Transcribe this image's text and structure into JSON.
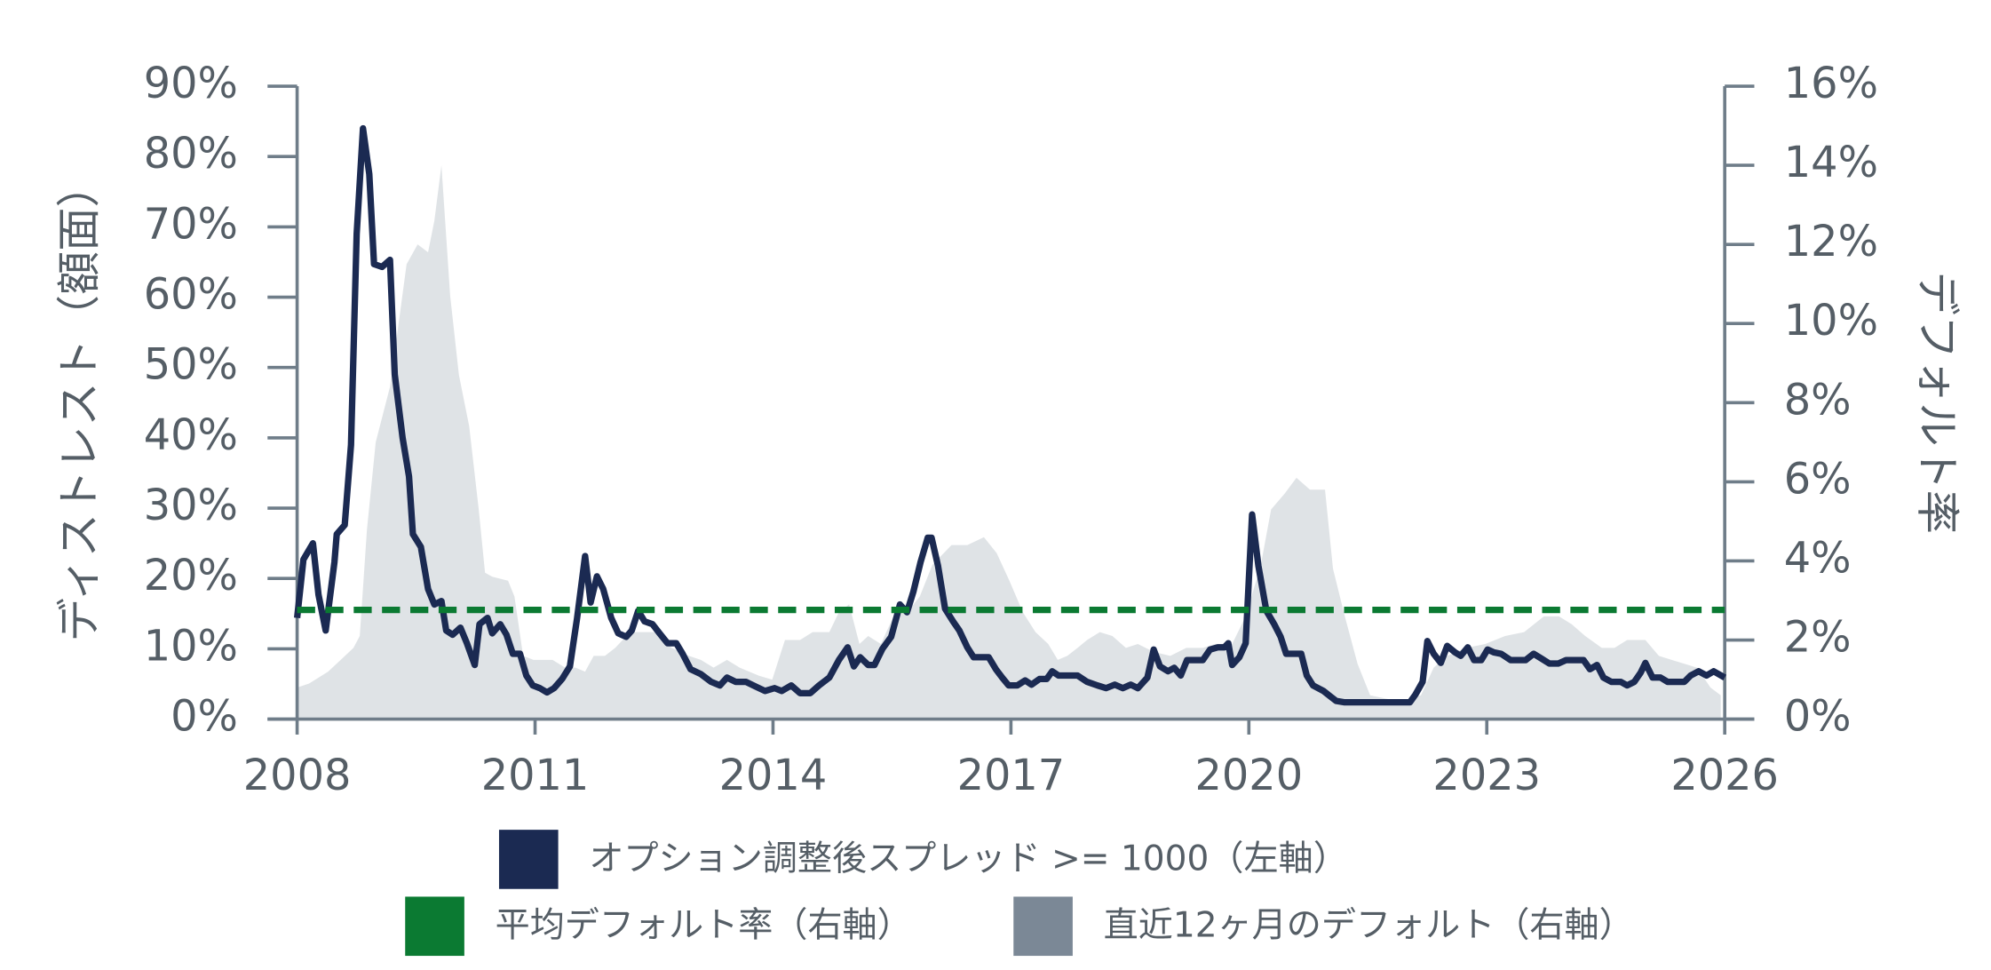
{
  "chart_data": {
    "type": "line",
    "ylabel": "ディストレスト（額面）",
    "y2label": "デフォルト率",
    "xlim": [
      2008,
      2026
    ],
    "xticks": [
      2008,
      2011,
      2014,
      2017,
      2020,
      2023,
      2026
    ],
    "ylim": [
      0,
      90
    ],
    "yticks": [
      {
        "value": 0,
        "label": "0%"
      },
      {
        "value": 10,
        "label": "10%"
      },
      {
        "value": 20,
        "label": "20%"
      },
      {
        "value": 30,
        "label": "30%"
      },
      {
        "value": 40,
        "label": "40%"
      },
      {
        "value": 50,
        "label": "50%"
      },
      {
        "value": 60,
        "label": "60%"
      },
      {
        "value": 70,
        "label": "70%"
      },
      {
        "value": 80,
        "label": "80%"
      },
      {
        "value": 90,
        "label": "90%"
      }
    ],
    "y2lim": [
      0,
      16
    ],
    "y2ticks": [
      {
        "value": 0,
        "label": "0%"
      },
      {
        "value": 2,
        "label": "2%"
      },
      {
        "value": 4,
        "label": "4%"
      },
      {
        "value": 6,
        "label": "6%"
      },
      {
        "value": 8,
        "label": "8%"
      },
      {
        "value": 10,
        "label": "10%"
      },
      {
        "value": 12,
        "label": "12%"
      },
      {
        "value": 14,
        "label": "14%"
      },
      {
        "value": 16,
        "label": "16%"
      }
    ],
    "series": [
      {
        "name": "オプション調整後スプレッド >= 1000（左軸）",
        "type": "line",
        "color": "#1b2a52",
        "x": [
          2008.0,
          2008.08,
          2008.2,
          2008.27,
          2008.36,
          2008.47,
          2008.5,
          2008.6,
          2008.68,
          2008.75,
          2008.83,
          2008.91,
          2008.97,
          2009.07,
          2009.17,
          2009.23,
          2009.33,
          2009.41,
          2009.46,
          2009.56,
          2009.65,
          2009.73,
          2009.82,
          2009.88,
          2009.96,
          2010.06,
          2010.14,
          2010.24,
          2010.3,
          2010.4,
          2010.46,
          2010.56,
          2010.64,
          2010.72,
          2010.81,
          2010.89,
          2010.97,
          2011.06,
          2011.15,
          2011.24,
          2011.34,
          2011.44,
          2011.53,
          2011.63,
          2011.7,
          2011.78,
          2011.86,
          2011.96,
          2012.05,
          2012.15,
          2012.22,
          2012.3,
          2012.38,
          2012.48,
          2012.57,
          2012.67,
          2012.78,
          2012.86,
          2012.96,
          2013.09,
          2013.22,
          2013.33,
          2013.42,
          2013.53,
          2013.66,
          2013.79,
          2013.9,
          2014.02,
          2014.11,
          2014.23,
          2014.34,
          2014.47,
          2014.58,
          2014.71,
          2014.83,
          2014.94,
          2015.02,
          2015.1,
          2015.2,
          2015.28,
          2015.38,
          2015.49,
          2015.6,
          2015.69,
          2015.77,
          2015.86,
          2015.95,
          2016.0,
          2016.08,
          2016.17,
          2016.27,
          2016.35,
          2016.45,
          2016.53,
          2016.63,
          2016.72,
          2016.81,
          2016.89,
          2016.97,
          2017.08,
          2017.18,
          2017.26,
          2017.36,
          2017.45,
          2017.52,
          2017.6,
          2017.71,
          2017.84,
          2017.96,
          2018.09,
          2018.2,
          2018.31,
          2018.41,
          2018.51,
          2018.6,
          2018.72,
          2018.8,
          2018.88,
          2018.98,
          2019.06,
          2019.14,
          2019.22,
          2019.32,
          2019.42,
          2019.51,
          2019.61,
          2019.69,
          2019.74,
          2019.79,
          2019.88,
          2019.96,
          2020.04,
          2020.12,
          2020.22,
          2020.32,
          2020.4,
          2020.47,
          2020.57,
          2020.66,
          2020.73,
          2020.81,
          2020.94,
          2021.02,
          2021.1,
          2021.2,
          2021.44,
          2021.77,
          2022.03,
          2022.1,
          2022.19,
          2022.25,
          2022.33,
          2022.42,
          2022.5,
          2022.6,
          2022.67,
          2022.76,
          2022.84,
          2022.93,
          2023.01,
          2023.09,
          2023.18,
          2023.3,
          2023.4,
          2023.49,
          2023.59,
          2023.69,
          2023.79,
          2023.9,
          2024.0,
          2024.1,
          2024.22,
          2024.3,
          2024.39,
          2024.47,
          2024.57,
          2024.69,
          2024.77,
          2024.86,
          2024.94,
          2025.0,
          2025.09,
          2025.19,
          2025.28,
          2025.38,
          2025.49,
          2025.57,
          2025.67,
          2025.77,
          2025.86,
          2026.0
        ],
        "values": [
          14.4,
          22.7,
          25,
          17.7,
          12.6,
          22.3,
          26.3,
          27.6,
          39,
          69,
          84,
          77.5,
          64.7,
          64.3,
          65.3,
          49,
          40,
          34.5,
          26.3,
          24.5,
          18.5,
          16.3,
          16.8,
          12.6,
          12,
          13,
          10.8,
          7.7,
          13.5,
          14.4,
          12.2,
          13.5,
          12,
          9.3,
          9.3,
          6.2,
          4.8,
          4.4,
          3.8,
          4.4,
          5.7,
          7.5,
          14.4,
          23.2,
          16.6,
          20.3,
          18.5,
          14.4,
          12.2,
          11.7,
          12.6,
          15.4,
          13.9,
          13.5,
          12.2,
          10.8,
          10.8,
          9.3,
          7.1,
          6.4,
          5.3,
          4.8,
          5.9,
          5.3,
          5.3,
          4.6,
          4.0,
          4.4,
          4.0,
          4.8,
          3.7,
          3.7,
          4.8,
          5.9,
          8.4,
          10.2,
          7.5,
          8.8,
          7.7,
          7.7,
          10,
          11.7,
          16.3,
          15.2,
          18.1,
          22.3,
          25.8,
          25.8,
          21.8,
          15.7,
          13.9,
          12.6,
          10.2,
          8.8,
          8.8,
          8.8,
          7.1,
          5.9,
          4.8,
          4.8,
          5.5,
          4.9,
          5.7,
          5.7,
          6.8,
          6.2,
          6.2,
          6.2,
          5.3,
          4.8,
          4.4,
          4.9,
          4.4,
          4.9,
          4.4,
          5.9,
          9.9,
          7.5,
          6.8,
          7.3,
          6.2,
          8.4,
          8.4,
          8.4,
          9.9,
          10.2,
          10.2,
          10.8,
          7.7,
          8.8,
          10.8,
          29.1,
          21.8,
          15.4,
          13.5,
          11.7,
          9.3,
          9.3,
          9.3,
          6.2,
          4.8,
          4.0,
          3.3,
          2.6,
          2.4,
          2.4,
          2.4,
          2.4,
          3.5,
          5.3,
          11.1,
          9.3,
          8.0,
          10.4,
          9.5,
          9.0,
          10.2,
          8.4,
          8.4,
          9.9,
          9.5,
          9.3,
          8.4,
          8.4,
          8.4,
          9.3,
          8.6,
          7.9,
          7.9,
          8.4,
          8.4,
          8.4,
          7.1,
          7.7,
          5.9,
          5.3,
          5.3,
          4.8,
          5.3,
          6.6,
          8.0,
          5.9,
          5.9,
          5.3,
          5.3,
          5.3,
          6.2,
          6.8,
          6.2,
          6.8,
          5.9
        ]
      },
      {
        "name": "平均デフォルト率（右軸）",
        "type": "hline",
        "axis": "y2",
        "color": "#0b7a32",
        "value": 2.76
      },
      {
        "name": "直近12ヶ月のデフォルト（右軸）",
        "type": "area",
        "axis": "y2",
        "color": "#7b8896",
        "x": [
          2008.0,
          2008.15,
          2008.39,
          2008.55,
          2008.71,
          2008.79,
          2008.88,
          2008.99,
          2009.17,
          2009.28,
          2009.38,
          2009.52,
          2009.65,
          2009.73,
          2009.82,
          2009.93,
          2010.04,
          2010.17,
          2010.29,
          2010.37,
          2010.46,
          2010.66,
          2010.74,
          2010.85,
          2010.98,
          2011.22,
          2011.38,
          2011.51,
          2011.63,
          2011.74,
          2011.88,
          2012.01,
          2012.2,
          2012.36,
          2012.53,
          2012.72,
          2012.94,
          2013.09,
          2013.25,
          2013.42,
          2013.58,
          2013.82,
          2013.99,
          2014.15,
          2014.34,
          2014.5,
          2014.71,
          2014.83,
          2014.96,
          2015.09,
          2015.2,
          2015.36,
          2015.52,
          2015.69,
          2015.85,
          2016.01,
          2016.25,
          2016.45,
          2016.66,
          2016.82,
          2016.98,
          2017.15,
          2017.31,
          2017.47,
          2017.59,
          2017.71,
          2017.84,
          2017.96,
          2018.12,
          2018.28,
          2018.45,
          2018.6,
          2018.8,
          2019.01,
          2019.21,
          2019.42,
          2019.58,
          2019.79,
          2019.96,
          2020.15,
          2020.28,
          2020.45,
          2020.6,
          2020.77,
          2020.96,
          2021.06,
          2021.21,
          2021.37,
          2021.53,
          2021.77,
          2022.02,
          2022.17,
          2022.33,
          2022.5,
          2022.74,
          2022.98,
          2023.23,
          2023.47,
          2023.72,
          2023.91,
          2024.07,
          2024.24,
          2024.45,
          2024.61,
          2024.77,
          2025.0,
          2025.17,
          2025.33,
          2025.49,
          2025.65,
          2025.82,
          2025.95
        ],
        "values": [
          0.8,
          0.9,
          1.2,
          1.5,
          1.8,
          2.1,
          4.8,
          7.0,
          8.4,
          10.0,
          11.5,
          12.0,
          11.8,
          12.6,
          14.0,
          10.7,
          8.7,
          7.4,
          5.3,
          3.7,
          3.6,
          3.5,
          3.1,
          1.6,
          1.5,
          1.5,
          1.3,
          1.3,
          1.2,
          1.6,
          1.6,
          1.8,
          2.2,
          2.2,
          2.2,
          1.8,
          1.6,
          1.5,
          1.3,
          1.5,
          1.3,
          1.1,
          1.0,
          2.0,
          2.0,
          2.2,
          2.2,
          2.7,
          2.9,
          1.9,
          2.1,
          1.9,
          2.6,
          2.7,
          3.1,
          3.9,
          4.4,
          4.4,
          4.6,
          4.2,
          3.5,
          2.7,
          2.2,
          1.9,
          1.5,
          1.6,
          1.8,
          2.0,
          2.2,
          2.1,
          1.8,
          1.9,
          1.7,
          1.6,
          1.8,
          1.8,
          1.9,
          1.9,
          2.6,
          3.9,
          5.3,
          5.7,
          6.1,
          5.8,
          5.8,
          3.8,
          2.6,
          1.4,
          0.6,
          0.5,
          0.5,
          0.6,
          1.3,
          1.6,
          1.8,
          1.9,
          2.1,
          2.2,
          2.6,
          2.6,
          2.4,
          2.1,
          1.8,
          1.8,
          2.0,
          2.0,
          1.6,
          1.5,
          1.4,
          1.3,
          0.8,
          0.6
        ]
      }
    ]
  }
}
